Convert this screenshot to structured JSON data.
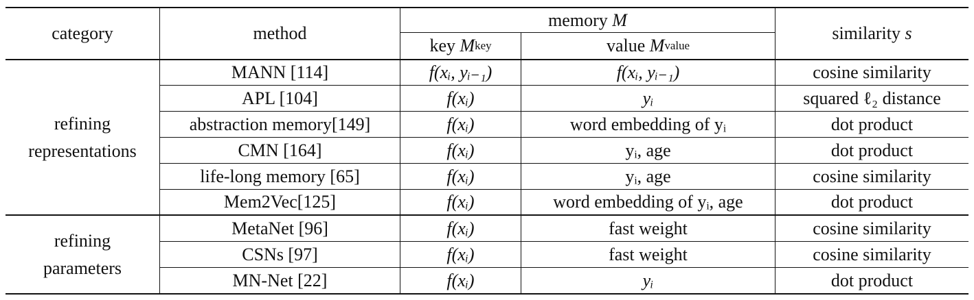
{
  "header": {
    "category": "category",
    "method": "method",
    "memory": "memory",
    "memory_symbol": "M",
    "key": "key",
    "key_symbol": "M",
    "key_sub": "key",
    "value": "value",
    "value_symbol": "M",
    "value_sub": "value",
    "similarity": "similarity",
    "similarity_symbol": "s"
  },
  "groups": [
    {
      "line1": "refining",
      "line2": "representations"
    },
    {
      "line1": "refining",
      "line2": "parameters"
    }
  ],
  "rows": [
    {
      "method": "MANN [114]",
      "key": "f(xᵢ, yᵢ₋₁)",
      "value": "f(xᵢ, yᵢ₋₁)",
      "similarity": "cosine similarity"
    },
    {
      "method": "APL [104]",
      "key": "f(xᵢ)",
      "value": "yᵢ",
      "similarity": "squared ℓ₂ distance"
    },
    {
      "method": "abstraction memory[149]",
      "key": "f(xᵢ)",
      "value": "word embedding of yᵢ",
      "similarity": "dot product"
    },
    {
      "method": "CMN [164]",
      "key": "f(xᵢ)",
      "value": "yᵢ, age",
      "similarity": "dot product"
    },
    {
      "method": "life-long memory [65]",
      "key": "f(xᵢ)",
      "value": "yᵢ, age",
      "similarity": "cosine similarity"
    },
    {
      "method": "Mem2Vec[125]",
      "key": "f(xᵢ)",
      "value": "word embedding of yᵢ, age",
      "similarity": "dot product"
    },
    {
      "method": "MetaNet [96]",
      "key": "f(xᵢ)",
      "value": "fast weight",
      "similarity": "cosine similarity"
    },
    {
      "method": "CSNs [97]",
      "key": "f(xᵢ)",
      "value": "fast weight",
      "similarity": "cosine similarity"
    },
    {
      "method": "MN-Net [22]",
      "key": "f(xᵢ)",
      "value": "yᵢ",
      "similarity": "dot product"
    }
  ]
}
